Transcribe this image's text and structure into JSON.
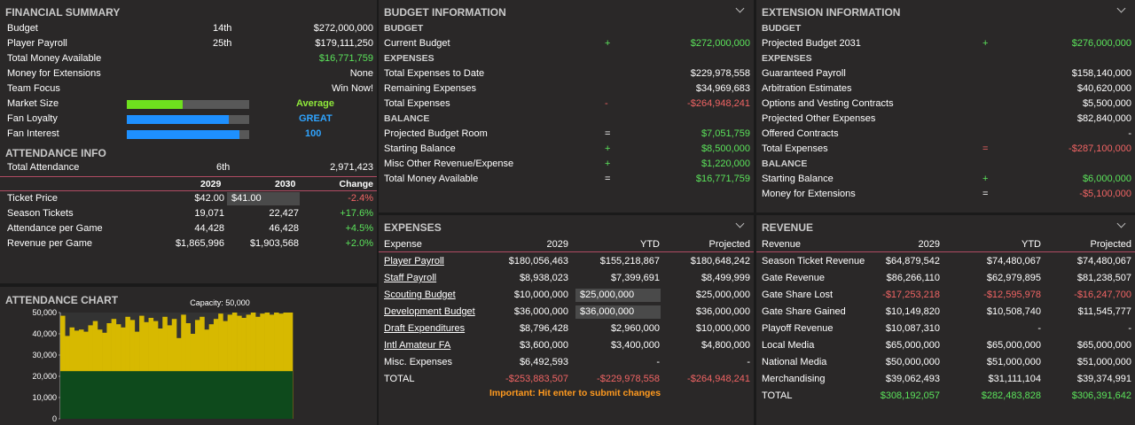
{
  "financial": {
    "title": "FINANCIAL SUMMARY",
    "rows": [
      {
        "label": "Budget",
        "rank": "14th",
        "value": "$272,000,000"
      },
      {
        "label": "Player Payroll",
        "rank": "25th",
        "value": "$179,111,250"
      },
      {
        "label": "Total Money Available",
        "value": "$16,771,759"
      },
      {
        "label": "Money for Extensions",
        "value": "None"
      },
      {
        "label": "Team Focus",
        "value": "Win Now!"
      }
    ],
    "meters": [
      {
        "label": "Market Size",
        "value": "Average",
        "level": 0.46,
        "color": "#6ee01e"
      },
      {
        "label": "Fan Loyalty",
        "value": "GREAT",
        "level": 0.83,
        "color": "#1e90ff"
      },
      {
        "label": "Fan Interest",
        "value": "100",
        "level": 0.92,
        "color": "#1e90ff"
      }
    ]
  },
  "attendance": {
    "title": "ATTENDANCE INFO",
    "total_label": "Total Attendance",
    "total_rank": "6th",
    "total_value": "2,971,423",
    "headers": [
      "2029",
      "2030",
      "Change"
    ],
    "rows": [
      {
        "label": "Ticket Price",
        "a": "$42.00",
        "b": "$41.00",
        "c": "-2.4%",
        "cc": "red"
      },
      {
        "label": "Season Tickets",
        "a": "19,071",
        "b": "22,427",
        "c": "+17.6%",
        "cc": "green"
      },
      {
        "label": "Attendance per Game",
        "a": "44,428",
        "b": "46,428",
        "c": "+4.5%",
        "cc": "green"
      },
      {
        "label": "Revenue per Game",
        "a": "$1,865,996",
        "b": "$1,903,568",
        "c": "+2.0%",
        "cc": "green"
      }
    ]
  },
  "att_chart": {
    "title": "ATTENDANCE CHART",
    "capacity_label": "Capacity: 50,000",
    "yticks": [
      "50,000",
      "40,000",
      "30,000",
      "20,000",
      "10,000",
      "0"
    ],
    "season_tickets": 22427,
    "games": [
      48500,
      39000,
      43000,
      41500,
      42000,
      41000,
      44000,
      46000,
      42000,
      40500,
      45000,
      47000,
      44500,
      43000,
      48000,
      46500,
      41000,
      48500,
      45500,
      47500,
      46000,
      42500,
      48000,
      44000,
      47000,
      38000,
      49000,
      45000,
      40000,
      46500,
      48000,
      42000,
      44500,
      47000,
      49500,
      46000,
      49000,
      50000,
      48500,
      47500,
      49000,
      50000,
      48000,
      49500,
      50000,
      49000,
      50000,
      49500,
      50000,
      50000
    ]
  },
  "budget": {
    "title": "BUDGET INFORMATION",
    "rows": [
      {
        "type": "sub",
        "label": "BUDGET"
      },
      {
        "label": "Current Budget",
        "sign": "+",
        "value": "$272,000,000",
        "vc": "green",
        "sc": "green"
      },
      {
        "type": "sub",
        "label": "EXPENSES"
      },
      {
        "label": "Total Expenses to Date",
        "value": "$229,978,558"
      },
      {
        "label": "Remaining Expenses",
        "value": "$34,969,683"
      },
      {
        "label": "Total Expenses",
        "sign": "-",
        "value": "-$264,948,241",
        "vc": "red",
        "sc": "red"
      },
      {
        "type": "sub",
        "label": "BALANCE"
      },
      {
        "label": "Projected Budget Room",
        "sign": "=",
        "value": "$7,051,759",
        "vc": "green"
      },
      {
        "label": "Starting Balance",
        "sign": "+",
        "value": "$8,500,000",
        "vc": "green",
        "sc": "green"
      },
      {
        "label": "Misc Other Revenue/Expense",
        "sign": "+",
        "value": "$1,220,000",
        "vc": "green",
        "sc": "green"
      },
      {
        "label": "Total Money Available",
        "sign": "=",
        "value": "$16,771,759",
        "vc": "green"
      }
    ]
  },
  "extension": {
    "title": "EXTENSION INFORMATION",
    "rows": [
      {
        "type": "sub",
        "label": "BUDGET"
      },
      {
        "label": "Projected Budget 2031",
        "sign": "+",
        "value": "$276,000,000",
        "vc": "green",
        "sc": "green"
      },
      {
        "type": "sub",
        "label": "EXPENSES"
      },
      {
        "label": "Guaranteed Payroll",
        "value": "$158,140,000"
      },
      {
        "label": "Arbitration Estimates",
        "value": "$40,620,000"
      },
      {
        "label": "Options and Vesting Contracts",
        "value": "$5,500,000"
      },
      {
        "label": "Projected Other Expenses",
        "value": "$82,840,000"
      },
      {
        "label": "Offered Contracts",
        "value": "-"
      },
      {
        "label": "Total Expenses",
        "sign": "=",
        "value": "-$287,100,000",
        "vc": "red",
        "sc": "red"
      },
      {
        "type": "sub",
        "label": "BALANCE"
      },
      {
        "label": "Starting Balance",
        "sign": "+",
        "value": "$6,000,000",
        "vc": "green",
        "sc": "green"
      },
      {
        "label": "Money for Extensions",
        "sign": "=",
        "value": "-$5,100,000",
        "vc": "red"
      }
    ]
  },
  "expenses": {
    "title": "EXPENSES",
    "headers": [
      "Expense",
      "2029",
      "YTD",
      "Projected"
    ],
    "rows": [
      {
        "label": "Player Payroll",
        "link": true,
        "a": "$180,056,463",
        "b": "$155,218,867",
        "c": "$180,648,242"
      },
      {
        "label": "Staff Payroll",
        "link": true,
        "a": "$8,938,023",
        "b": "$7,399,691",
        "c": "$8,499,999"
      },
      {
        "label": "Scouting Budget",
        "link": true,
        "a": "$10,000,000",
        "b": "$25,000,000",
        "input": true,
        "c": "$25,000,000"
      },
      {
        "label": "Development Budget",
        "link": true,
        "a": "$36,000,000",
        "b": "$36,000,000",
        "input": true,
        "c": "$36,000,000"
      },
      {
        "label": "Draft Expenditures",
        "link": true,
        "a": "$8,796,428",
        "b": "$2,960,000",
        "c": "$10,000,000"
      },
      {
        "label": "Intl Amateur FA",
        "link": true,
        "a": "$3,600,000",
        "b": "$3,400,000",
        "c": "$4,800,000"
      },
      {
        "label": "Misc. Expenses",
        "a": "$6,492,593",
        "b": "-",
        "c": "-"
      },
      {
        "label": "TOTAL",
        "total": true,
        "a": "-$253,883,507",
        "b": "-$229,978,558",
        "c": "-$264,948,241",
        "cls": "red"
      }
    ],
    "note": "Important: Hit enter to submit changes"
  },
  "revenue": {
    "title": "REVENUE",
    "headers": [
      "Revenue",
      "2029",
      "YTD",
      "Projected"
    ],
    "rows": [
      {
        "label": "Season Ticket Revenue",
        "a": "$64,879,542",
        "b": "$74,480,067",
        "c": "$74,480,067"
      },
      {
        "label": "Gate Revenue",
        "a": "$86,266,110",
        "b": "$62,979,895",
        "c": "$81,238,507"
      },
      {
        "label": "Gate Share Lost",
        "a": "-$17,253,218",
        "b": "-$12,595,978",
        "c": "-$16,247,700",
        "cls": "red"
      },
      {
        "label": "Gate Share Gained",
        "a": "$10,149,820",
        "b": "$10,508,740",
        "c": "$11,545,777"
      },
      {
        "label": "Playoff Revenue",
        "a": "$10,087,310",
        "b": "-",
        "c": "-"
      },
      {
        "label": "Local Media",
        "a": "$65,000,000",
        "b": "$65,000,000",
        "c": "$65,000,000"
      },
      {
        "label": "National Media",
        "a": "$50,000,000",
        "b": "$51,000,000",
        "c": "$51,000,000"
      },
      {
        "label": "Merchandising",
        "a": "$39,062,493",
        "b": "$31,111,104",
        "c": "$39,374,991"
      },
      {
        "label": "TOTAL",
        "total": true,
        "a": "$308,192,057",
        "b": "$282,483,828",
        "c": "$306,391,642",
        "cls": "green"
      }
    ]
  }
}
